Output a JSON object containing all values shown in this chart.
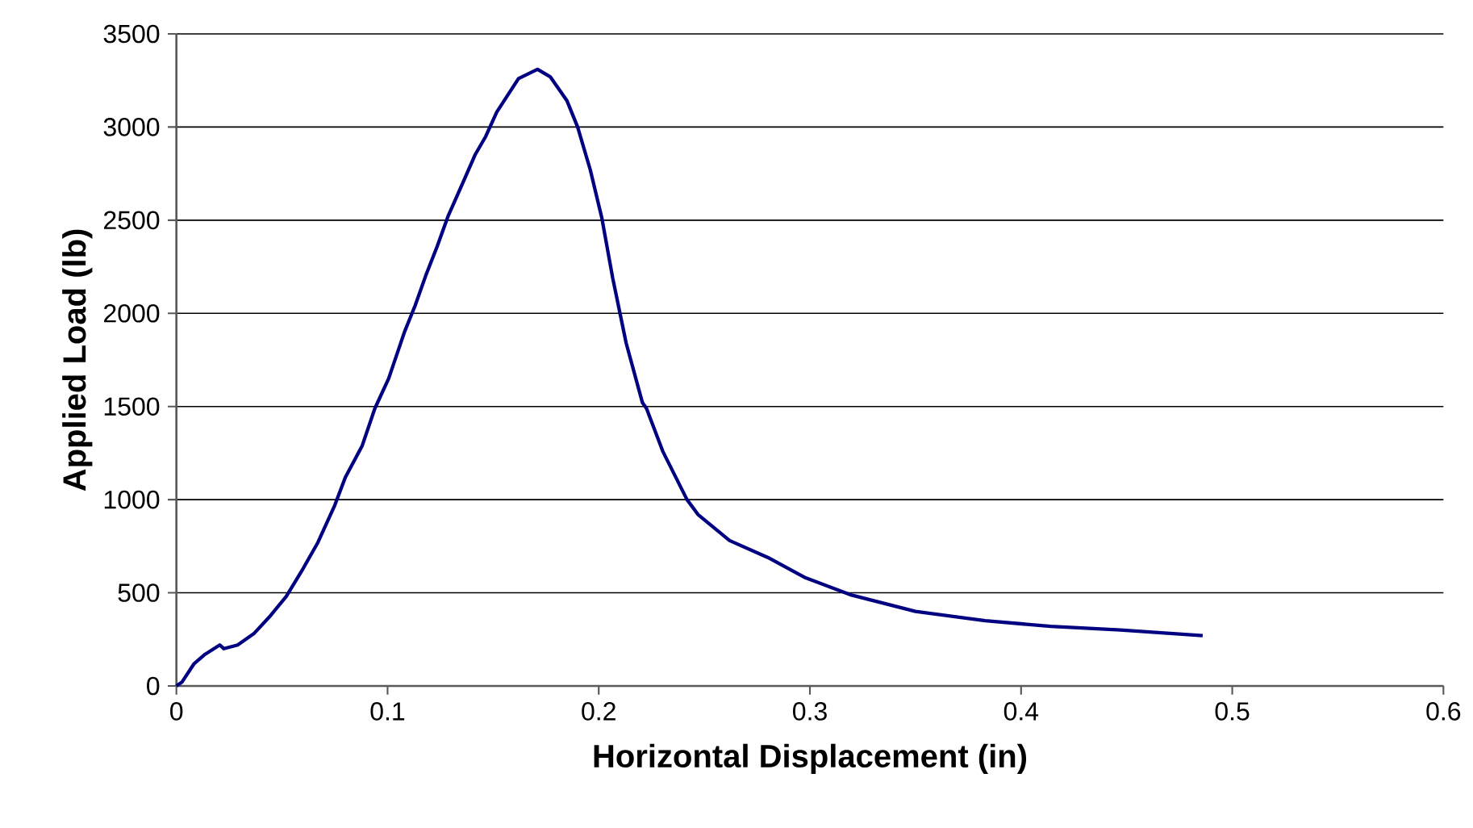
{
  "chart_data": {
    "type": "line",
    "xlabel": "Horizontal Displacement (in)",
    "ylabel": "Applied Load (lb)",
    "xlim": [
      0,
      0.6
    ],
    "xticks": [
      0,
      0.1,
      0.2,
      0.3,
      0.4,
      0.5,
      0.6
    ],
    "ylim": [
      0,
      3500
    ],
    "yticks": [
      0,
      500,
      1000,
      1500,
      2000,
      2500,
      3000,
      3500
    ],
    "grid": "y",
    "marker": "none",
    "line_style": "solid",
    "x": [
      0,
      0.0026,
      0.0084,
      0.0136,
      0.0205,
      0.0225,
      0.029,
      0.0366,
      0.044,
      0.052,
      0.06,
      0.067,
      0.075,
      0.08,
      0.088,
      0.094,
      0.1005,
      0.108,
      0.113,
      0.118,
      0.1235,
      0.1286,
      0.136,
      0.1414,
      0.1465,
      0.1517,
      0.162,
      0.171,
      0.177,
      0.185,
      0.19,
      0.196,
      0.2015,
      0.2066,
      0.213,
      0.2207,
      0.2226,
      0.2303,
      0.2418,
      0.247,
      0.262,
      0.28,
      0.298,
      0.319,
      0.35,
      0.383,
      0.414,
      0.447,
      0.486
    ],
    "series": [
      {
        "color": "#000080",
        "values": [
          0,
          20,
          120,
          170,
          220,
          200,
          220,
          280,
          370,
          480,
          630,
          770,
          970,
          1120,
          1290,
          1490,
          1650,
          1900,
          2040,
          2200,
          2360,
          2520,
          2710,
          2850,
          2950,
          3080,
          3260,
          3310,
          3270,
          3140,
          3000,
          2770,
          2510,
          2190,
          1840,
          1520,
          1490,
          1260,
          1000,
          920,
          780,
          690,
          580,
          490,
          400,
          350,
          320,
          300,
          270
        ]
      }
    ]
  }
}
